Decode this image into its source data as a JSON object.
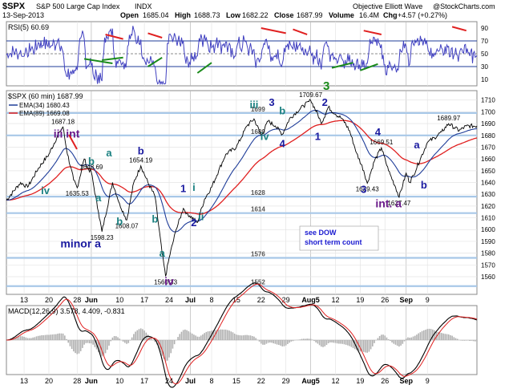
{
  "header": {
    "symbol": "$SPX",
    "name": "S&P 500 Large Cap Index",
    "exchange": "INDX",
    "date": "13-Sep-2013",
    "source": "Objective Elliott Wave",
    "credit": "@StockCharts.com",
    "open_label": "Open",
    "open": "1685.04",
    "high_label": "High",
    "high": "1688.73",
    "low_label": "Low",
    "low": "1682.22",
    "close_label": "Close",
    "close": "1687.99",
    "volume_label": "Volume",
    "volume": "16.4M",
    "chg_label": "Chg",
    "chg": "+4.57 (+0.27%)"
  },
  "colors": {
    "price": "#000000",
    "ema34": "#1f3d99",
    "ema89": "#e02020",
    "rsi": "#4040c0",
    "wave_label": "#1a1aa0",
    "wave_teal": "#1a8080",
    "wave_purple": "#6a1a8a",
    "wave_green": "#1a8a1a",
    "panel_bg": "#ffffff",
    "hband": "#a8c8e8",
    "grid": "#e4e4e4"
  },
  "chart_data": [
    {
      "type": "line",
      "panel": "rsi",
      "legend": "RSI(5) 60.69",
      "ylim": [
        0,
        100
      ],
      "yticks": [
        "90",
        "70",
        "50",
        "30",
        "10"
      ],
      "reference_lines": [
        70,
        50,
        30
      ]
    },
    {
      "type": "line",
      "panel": "price",
      "legend_price": "$SPX (60 min) 1687.99",
      "legend_ema34": "EMA(34) 1680.43",
      "legend_ema89": "EMA(89) 1669.08",
      "ylim": [
        1545,
        1718
      ],
      "yticks": [
        "1710",
        "1700",
        "1690",
        "1680",
        "1670",
        "1660",
        "1650",
        "1640",
        "1630",
        "1620",
        "1610",
        "1600",
        "1590",
        "1580",
        "1570",
        "1560"
      ],
      "xticks": [
        "13",
        "20",
        "28",
        "Jun",
        "10",
        "17",
        "24",
        "Jul",
        "8",
        "15",
        "22",
        "29",
        "Aug5",
        "12",
        "19",
        "26",
        "Sep",
        "9"
      ],
      "xtick_pos": [
        13,
        20,
        28,
        32,
        40,
        47,
        54,
        60,
        66,
        73,
        80,
        87,
        94,
        101,
        108,
        115,
        121,
        127
      ],
      "x_range": [
        8,
        141
      ],
      "horizontal_levels": [
        {
          "value": 1699,
          "label": "1699"
        },
        {
          "value": 1680,
          "label": "1680"
        },
        {
          "value": 1628,
          "label": "1628"
        },
        {
          "value": 1614,
          "label": "1614"
        },
        {
          "value": 1576,
          "label": "1576"
        },
        {
          "value": 1552,
          "label": "1552"
        }
      ],
      "price_pivots": [
        [
          8,
          1625
        ],
        [
          12,
          1640
        ],
        [
          14,
          1636
        ],
        [
          17,
          1652
        ],
        [
          20,
          1664
        ],
        [
          23,
          1683
        ],
        [
          24,
          1687.18
        ],
        [
          25,
          1668
        ],
        [
          27,
          1642
        ],
        [
          28,
          1635.53
        ],
        [
          30,
          1660
        ],
        [
          31,
          1652
        ],
        [
          32,
          1648.69
        ],
        [
          34,
          1615
        ],
        [
          35,
          1598.23
        ],
        [
          38,
          1640
        ],
        [
          40,
          1622
        ],
        [
          42,
          1608.07
        ],
        [
          44,
          1640
        ],
        [
          46,
          1654.19
        ],
        [
          48,
          1640
        ],
        [
          50,
          1628
        ],
        [
          52,
          1580
        ],
        [
          53,
          1560.33
        ],
        [
          54,
          1576
        ],
        [
          56,
          1600
        ],
        [
          58,
          1618
        ],
        [
          59,
          1614
        ],
        [
          62,
          1606
        ],
        [
          64,
          1626
        ],
        [
          66,
          1636
        ],
        [
          68,
          1650
        ],
        [
          70,
          1664
        ],
        [
          73,
          1670
        ],
        [
          76,
          1688
        ],
        [
          78,
          1694
        ],
        [
          80,
          1680
        ],
        [
          82,
          1692
        ],
        [
          84,
          1688
        ],
        [
          86,
          1681
        ],
        [
          88,
          1694
        ],
        [
          90,
          1700
        ],
        [
          92,
          1705
        ],
        [
          94,
          1709.67
        ],
        [
          96,
          1698
        ],
        [
          97,
          1690
        ],
        [
          99,
          1704
        ],
        [
          101,
          1698
        ],
        [
          103,
          1694
        ],
        [
          105,
          1684
        ],
        [
          107,
          1665
        ],
        [
          109,
          1650
        ],
        [
          110,
          1639.43
        ],
        [
          112,
          1658
        ],
        [
          114,
          1669.51
        ],
        [
          116,
          1650
        ],
        [
          118,
          1636
        ],
        [
          119,
          1627.47
        ],
        [
          121,
          1648
        ],
        [
          122,
          1640
        ],
        [
          123,
          1646
        ],
        [
          125,
          1660
        ],
        [
          127,
          1674
        ],
        [
          129,
          1678
        ],
        [
          131,
          1683
        ],
        [
          133,
          1689.97
        ],
        [
          136,
          1684
        ],
        [
          138,
          1688
        ],
        [
          141,
          1687.99
        ]
      ],
      "price_labels": [
        {
          "x": 24,
          "y": 1687.18,
          "text": "1687.18"
        },
        {
          "x": 28,
          "y": 1635.53,
          "text": "1635.53"
        },
        {
          "x": 32,
          "y": 1648.69,
          "text": "1648.69"
        },
        {
          "x": 35,
          "y": 1598.23,
          "text": "1598.23"
        },
        {
          "x": 42,
          "y": 1608.07,
          "text": "1608.07"
        },
        {
          "x": 46,
          "y": 1654.19,
          "text": "1654.19"
        },
        {
          "x": 53,
          "y": 1560.33,
          "text": "1560.33"
        },
        {
          "x": 94,
          "y": 1709.67,
          "text": "1709.67"
        },
        {
          "x": 110,
          "y": 1639.43,
          "text": "1639.43"
        },
        {
          "x": 114,
          "y": 1669.51,
          "text": "1669.51"
        },
        {
          "x": 119,
          "y": 1627.47,
          "text": "1627.47"
        },
        {
          "x": 133,
          "y": 1689.97,
          "text": "1689.97"
        }
      ],
      "wave_labels": [
        {
          "x": 25,
          "y": 1678,
          "text": "iii int",
          "style": "purple"
        },
        {
          "x": 19,
          "y": 1630,
          "text": "iv",
          "style": "teal"
        },
        {
          "x": 32,
          "y": 1655,
          "text": "b",
          "style": "teal"
        },
        {
          "x": 34,
          "y": 1624,
          "text": "a",
          "style": "teal"
        },
        {
          "x": 37,
          "y": 1662,
          "text": "a",
          "style": "teal"
        },
        {
          "x": 40,
          "y": 1604,
          "text": "b",
          "style": "teal"
        },
        {
          "x": 29,
          "y": 1585,
          "text": "minor a",
          "style": "blue"
        },
        {
          "x": 46,
          "y": 1664,
          "text": "b",
          "style": "blue"
        },
        {
          "x": 52,
          "y": 1577,
          "text": "a",
          "style": "teal"
        },
        {
          "x": 50,
          "y": 1606,
          "text": "b",
          "style": "teal"
        },
        {
          "x": 54,
          "y": 1553,
          "text": "iv",
          "style": "purple"
        },
        {
          "x": 58,
          "y": 1632,
          "text": "1",
          "style": "blue"
        },
        {
          "x": 61,
          "y": 1633,
          "text": "i",
          "style": "teal"
        },
        {
          "x": 61,
          "y": 1603,
          "text": "2",
          "style": "blue"
        },
        {
          "x": 63,
          "y": 1608,
          "text": "ii",
          "style": "teal"
        },
        {
          "x": 78,
          "y": 1703,
          "text": "iii",
          "style": "teal"
        },
        {
          "x": 81,
          "y": 1676,
          "text": "iv",
          "style": "teal"
        },
        {
          "x": 83,
          "y": 1705,
          "text": "3",
          "style": "blue"
        },
        {
          "x": 86,
          "y": 1698,
          "text": "b",
          "style": "teal"
        },
        {
          "x": 86,
          "y": 1670,
          "text": "4",
          "style": "blue"
        },
        {
          "x": 98,
          "y": 1705,
          "text": "2",
          "style": "blue"
        },
        {
          "x": 96,
          "y": 1676,
          "text": "1",
          "style": "blue"
        },
        {
          "x": 113,
          "y": 1680,
          "text": "4",
          "style": "blue"
        },
        {
          "x": 109,
          "y": 1631,
          "text": "3",
          "style": "blue"
        },
        {
          "x": 116,
          "y": 1619,
          "text": "int. a",
          "style": "purple"
        },
        {
          "x": 124,
          "y": 1669,
          "text": "a",
          "style": "blue"
        },
        {
          "x": 126,
          "y": 1635,
          "text": "b",
          "style": "blue"
        }
      ],
      "annotation_lines": [
        "see DOW",
        "short term count"
      ]
    },
    {
      "type": "line",
      "panel": "macd",
      "legend": "MACD(12,26,9) 3.578, 4.409, -0.831"
    }
  ],
  "rsi_wave_label": "3"
}
